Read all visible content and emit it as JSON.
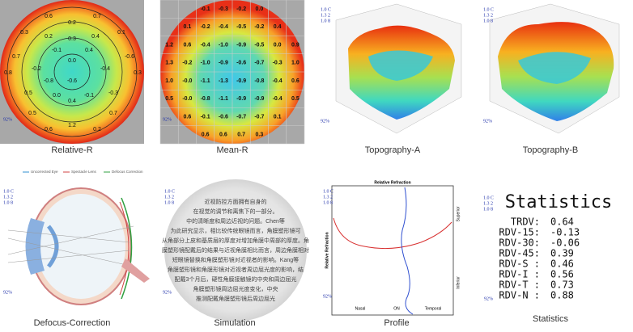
{
  "panels": [
    {
      "caption": "Relative-R"
    },
    {
      "caption": "Mean-R"
    },
    {
      "caption": "Topography-A"
    },
    {
      "caption": "Topography-B"
    },
    {
      "caption": "Defocus-Correction"
    },
    {
      "caption": "Simulation"
    },
    {
      "caption": "Profile"
    },
    {
      "caption": "Statistics"
    }
  ],
  "corner_legend": [
    "1.0 C",
    "1.3 2",
    "1.0 8"
  ],
  "ratio": "92%",
  "relative_r": [
    "0.6",
    "0.7",
    "0.3",
    "0.2",
    "0.1",
    "0.2",
    "0.4",
    "0.3",
    "-0.1",
    "0.4",
    "0.7",
    "-0.6",
    "-0.2",
    "0.0",
    "-0.4",
    "-0.6",
    "-0.8",
    "0.8",
    "0.3",
    "0.5",
    "-0.3",
    "0.0",
    "-0.1",
    "0.4",
    "0.5",
    "0.7",
    "1.2",
    "0.6",
    "0.2"
  ],
  "mean_r": [
    [
      "-0.1",
      "-0.3",
      "-0.2",
      "0.0"
    ],
    [
      "0.1",
      "-0.2",
      "-0.4",
      "-0.5",
      "-0.2",
      "0.4"
    ],
    [
      "1.2",
      "0.6",
      "-0.4",
      "-1.0",
      "-0.9",
      "-0.5",
      "0.0",
      "0.9"
    ],
    [
      "1.3",
      "-0.2",
      "-1.0",
      "-0.9",
      "-0.6",
      "-0.7",
      "-0.3",
      "1.0"
    ],
    [
      "1.0",
      "-0.0",
      "-1.1",
      "-1.3",
      "-0.9",
      "-0.8",
      "-0.4",
      "0.6"
    ],
    [
      "0.5",
      "-0.0",
      "-0.8",
      "-1.1",
      "-0.9",
      "-0.9",
      "-0.4",
      "0.5"
    ],
    [
      "0.6",
      "-0.1",
      "-0.6",
      "-0.7",
      "-0.7",
      "0.1"
    ],
    [
      "0.6",
      "0.6",
      "0.7",
      "0.3"
    ]
  ],
  "defocus_legend": [
    "Uncorrected Eye",
    "Spectacle Lens",
    "Defocus Correction"
  ],
  "simulation_text": [
    "近视防控方面拥有自身的",
    "在视觉的调节和离焦下的一部分。",
    "中的清晰度和周边近视的问题。Chen等",
    "为此研究显示，相比较传统眼镜而言，角膜塑形镜可",
    "从角部分上皮和基质层的厚度对增加角膜中周部的厚度。角",
    "膜塑形镜配戴后的结果与近视角膜相比而言，周边角膜相对",
    "短眼镜替换和角膜塑形镜对近视者的影响。Kang等",
    "角膜塑形镜和角膜形镜对近视者周边屈光度的影响，结",
    "配戴3个月后，硬性角膜接触镜的中央和周边屈光",
    "角膜塑形镜周边屈光度变化，中央",
    "推测配戴角膜塑形镜后周边屈光"
  ],
  "profile": {
    "title": "Relative Refraction",
    "y_label": "Relative Refraction",
    "x_labels": [
      "Nasal",
      "ON",
      "Temporal"
    ],
    "side_labels": [
      "Superior",
      "Inferior"
    ]
  },
  "statistics": {
    "title": "Statistics",
    "rows": [
      {
        "label": "TRDV:",
        "value": 0.64
      },
      {
        "label": "RDV-15:",
        "value": -0.13
      },
      {
        "label": "RDV-30:",
        "value": -0.06
      },
      {
        "label": "RDV-45:",
        "value": 0.39
      },
      {
        "label": "RDV-S :",
        "value": 0.46
      },
      {
        "label": "RDV-I :",
        "value": 0.56
      },
      {
        "label": "RDV-T :",
        "value": 0.73
      },
      {
        "label": "RDV-N :",
        "value": 0.88
      }
    ]
  }
}
